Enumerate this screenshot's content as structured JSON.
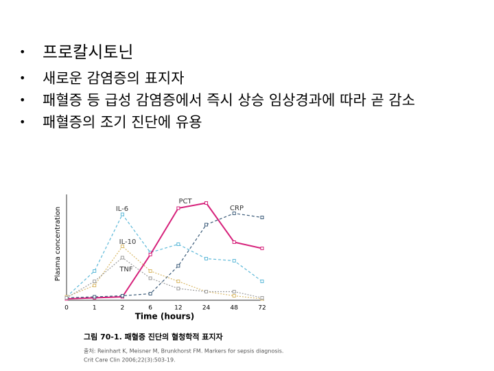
{
  "bullets": [
    "프로칼시토닌",
    "새로운 감염증의 표지자",
    "패혈증 등 급성 감염증에서 즉시 상승 임상경과에 따라 곧 감소",
    "패혈증의 조기 진단에 유용"
  ],
  "chart_data": {
    "type": "line",
    "x_label": "Time (hours)",
    "y_label": "Plasma concentration",
    "categories": [
      "0",
      "1",
      "2",
      "6",
      "12",
      "24",
      "48",
      "72"
    ],
    "ylim": [
      0,
      100
    ],
    "series": [
      {
        "name": "IL-6",
        "color": "#5bb8d8",
        "values": [
          2,
          27,
          82,
          45,
          53,
          39,
          37,
          17
        ]
      },
      {
        "name": "PCT",
        "color": "#d6207a",
        "values": [
          0,
          1,
          2,
          43,
          88,
          93,
          55,
          49
        ]
      },
      {
        "name": "CRP",
        "color": "#3a5a78",
        "values": [
          1,
          2,
          3,
          5,
          32,
          72,
          83,
          79
        ]
      },
      {
        "name": "IL-10",
        "color": "#d9b866",
        "values": [
          2,
          13,
          51,
          27,
          17,
          7,
          3,
          0
        ]
      },
      {
        "name": "TNF",
        "color": "#9a9a9a",
        "values": [
          1,
          17,
          40,
          20,
          10,
          7,
          7,
          1
        ]
      }
    ],
    "caption": "그림 70-1. 패혈증 진단의 혈청학적 표지자",
    "source": [
      "출처: Reinhart K, Meisner M, Brunkhorst FM. Markers for sepsis diagnosis.",
      "Crit Care Clin 2006;22(3):503-19."
    ]
  }
}
